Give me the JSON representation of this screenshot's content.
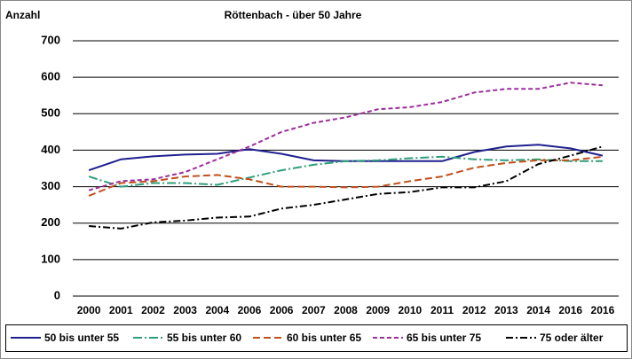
{
  "chart_data": {
    "type": "line",
    "title": "Röttenbach - über 50 Jahre",
    "y_label": "Anzahl",
    "categories": [
      "2000",
      "2001",
      "2002",
      "2003",
      "2004",
      "2006",
      "2006",
      "2007",
      "2008",
      "2009",
      "2010",
      "2011",
      "2012",
      "2013",
      "2014",
      "2016",
      "2016"
    ],
    "series": [
      {
        "name": "50 bis unter 55",
        "color": "#1f1f8f",
        "dash": "",
        "values": [
          345,
          375,
          383,
          388,
          390,
          403,
          390,
          372,
          370,
          370,
          370,
          370,
          395,
          410,
          415,
          405,
          385
        ]
      },
      {
        "name": "55 bis unter 60",
        "color": "#2e9e7a",
        "dash": "10,3,2,3",
        "values": [
          328,
          300,
          310,
          310,
          305,
          325,
          345,
          360,
          370,
          372,
          378,
          382,
          375,
          372,
          375,
          370,
          370
        ]
      },
      {
        "name": "60 bis unter 65",
        "color": "#c0501a",
        "dash": "8,4",
        "values": [
          275,
          310,
          315,
          328,
          332,
          320,
          300,
          300,
          298,
          300,
          315,
          328,
          352,
          365,
          372,
          372,
          382
        ]
      },
      {
        "name": "65 bis unter 75",
        "color": "#9b2f9b",
        "dash": "5,3",
        "values": [
          290,
          315,
          320,
          340,
          375,
          410,
          450,
          475,
          490,
          512,
          518,
          532,
          558,
          568,
          568,
          585,
          578
        ]
      },
      {
        "name": "75 oder älter",
        "color": "#000000",
        "dash": "8,3,2,3",
        "values": [
          192,
          185,
          202,
          207,
          215,
          218,
          240,
          250,
          265,
          280,
          285,
          298,
          298,
          315,
          362,
          385,
          410
        ]
      }
    ],
    "ylim": [
      0,
      700
    ],
    "yticks": [
      0,
      100,
      200,
      300,
      400,
      500,
      600,
      700
    ],
    "grid": true,
    "legend": "bottom"
  }
}
